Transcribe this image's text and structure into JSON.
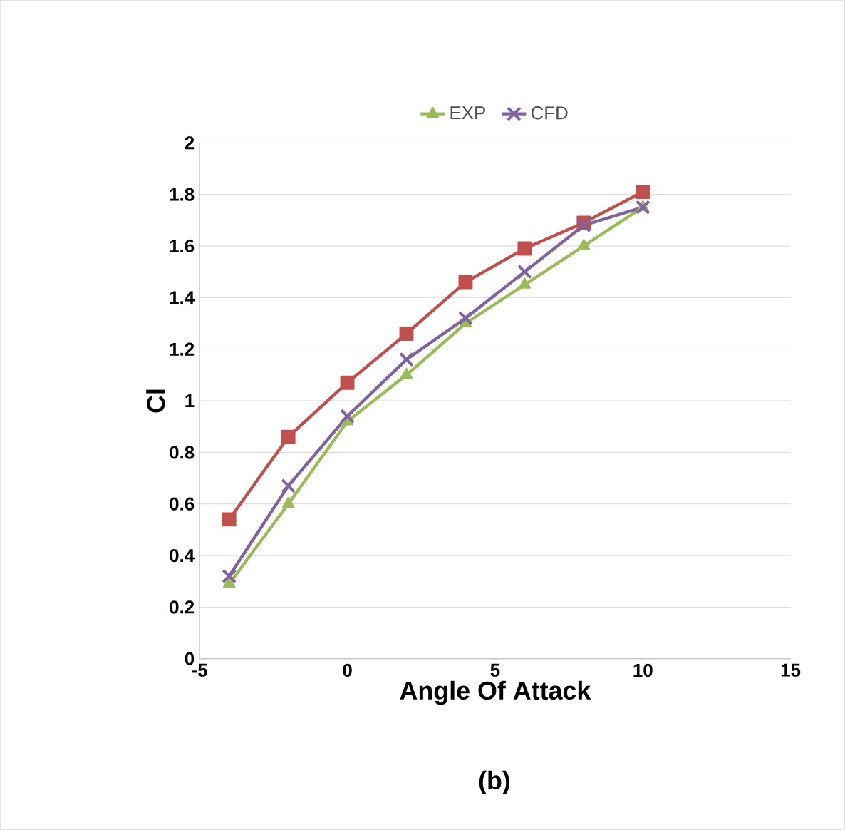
{
  "chart_data": {
    "type": "line",
    "xlabel": "Angle Of Attack",
    "ylabel": "Cl",
    "x": [
      -4,
      -2,
      0,
      2,
      4,
      6,
      8,
      10
    ],
    "series": [
      {
        "color": "#c0504d",
        "marker": "square",
        "values": [
          0.54,
          0.86,
          1.07,
          1.26,
          1.46,
          1.59,
          1.69,
          1.81
        ]
      },
      {
        "name": "EXP",
        "color": "#9bbb59",
        "marker": "triangle",
        "values": [
          0.29,
          0.6,
          0.92,
          1.1,
          1.3,
          1.45,
          1.6,
          1.75
        ]
      },
      {
        "name": "CFD",
        "color": "#8064a2",
        "marker": "cross",
        "values": [
          0.32,
          0.67,
          0.94,
          1.16,
          1.32,
          1.5,
          1.68,
          1.75
        ]
      }
    ],
    "xlim": [
      -5,
      15
    ],
    "xticks": [
      -5,
      0,
      5,
      10,
      15
    ],
    "ylim": [
      0,
      2
    ],
    "yticks": [
      0,
      0.2,
      0.4,
      0.6,
      0.8,
      1,
      1.2,
      1.4,
      1.6,
      1.8,
      2
    ],
    "grid": "y",
    "legend": "top",
    "line_style": "solid",
    "annotations": [
      "(b)"
    ]
  }
}
